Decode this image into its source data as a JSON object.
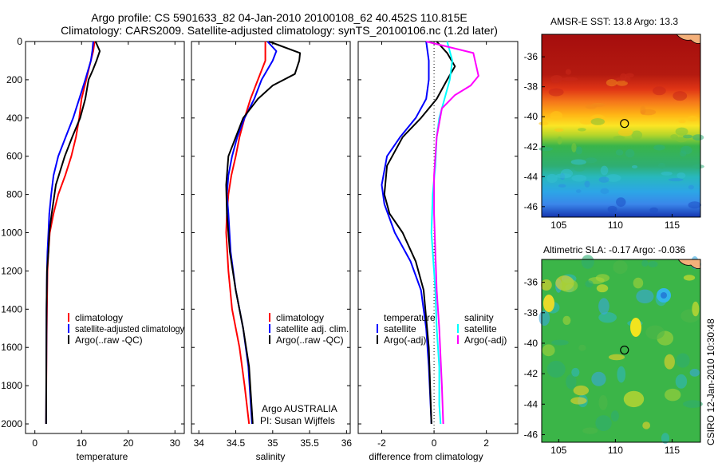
{
  "header": {
    "line1": "Argo profile: CS 5901633_82 04-Jan-2010 20100108_62 40.452S 110.815E",
    "line2": "Climatology: CARS2009. Satellite-adjusted climatology: synTS_20100106.nc (1.2d later)"
  },
  "side": {
    "sst_caption": "AMSR-E SST: 13.8 Argo: 13.3",
    "sla_caption": "Altimetric SLA: -0.17 Argo: -0.036",
    "credit": "CSIRO 12-Jan-2010 10:30:48"
  },
  "colors": {
    "climatology": "#ff0000",
    "satellite": "#0000ff",
    "argo": "#000000",
    "sal_satellite": "#00ffff",
    "sal_argo": "#ff00ff",
    "land": "#f4b07a"
  },
  "chart_data": [
    {
      "type": "line",
      "xlabel": "temperature",
      "xlim": [
        -2,
        32
      ],
      "xticks": [
        "0",
        "10",
        "20",
        "30"
      ],
      "ylim": [
        0,
        2050
      ],
      "yticks": [
        "0",
        "200",
        "400",
        "600",
        "800",
        "1000",
        "1200",
        "1400",
        "1600",
        "1800",
        "2000"
      ],
      "legend": [
        "climatology",
        "satellite-adjusted climatology",
        "Argo(..raw -QC)"
      ],
      "series": [
        {
          "name": "climatology",
          "color": "climatology",
          "x": [
            12.8,
            12.5,
            12.0,
            11.0,
            10.0,
            9.5,
            8.8,
            7.8,
            6.5,
            5.0,
            4.0,
            3.2,
            2.9,
            2.7,
            2.6,
            2.5,
            2.4
          ],
          "y": [
            0,
            50,
            100,
            200,
            300,
            400,
            500,
            600,
            700,
            800,
            900,
            1000,
            1100,
            1200,
            1400,
            1600,
            2000
          ]
        },
        {
          "name": "satellite-adjusted climatology",
          "color": "satellite",
          "x": [
            12.5,
            12.3,
            12.0,
            10.8,
            9.5,
            8.2,
            6.6,
            5.0,
            4.0,
            3.5,
            3.1,
            2.9,
            2.7,
            2.6,
            2.5,
            2.4
          ],
          "y": [
            0,
            50,
            100,
            200,
            300,
            400,
            500,
            600,
            700,
            800,
            900,
            1000,
            1100,
            1200,
            1400,
            2000
          ]
        },
        {
          "name": "Argo(..raw -QC)",
          "color": "argo",
          "x": [
            13.0,
            13.9,
            13.2,
            12.4,
            11.5,
            10.8,
            9.7,
            8.0,
            6.4,
            4.5,
            3.6,
            3.1,
            2.9,
            2.6,
            2.5,
            2.4
          ],
          "y": [
            0,
            50,
            100,
            150,
            200,
            300,
            400,
            500,
            600,
            750,
            900,
            1000,
            1100,
            1200,
            1400,
            2000
          ]
        }
      ]
    },
    {
      "type": "line",
      "xlabel": "salinity",
      "xlim": [
        33.9,
        36.05
      ],
      "xticks": [
        "34",
        "34.5",
        "35",
        "35.5",
        "36"
      ],
      "ylim": [
        0,
        2050
      ],
      "yticks": [],
      "legend": [
        "climatology",
        "satellite adj. clim.",
        "Argo(..raw -QC)"
      ],
      "annotations": [
        "Argo AUSTRALIA",
        "PI: Susan Wijffels"
      ],
      "series": [
        {
          "name": "climatology",
          "color": "climatology",
          "x": [
            34.9,
            34.9,
            34.8,
            34.7,
            34.62,
            34.55,
            34.5,
            34.44,
            34.4,
            34.38,
            34.37,
            34.4,
            34.45,
            34.55,
            34.62,
            34.68
          ],
          "y": [
            0,
            100,
            200,
            300,
            400,
            500,
            600,
            700,
            800,
            900,
            1000,
            1200,
            1400,
            1600,
            1800,
            2000
          ]
        },
        {
          "name": "satellite adj. clim.",
          "color": "satellite",
          "x": [
            34.93,
            35.05,
            35.0,
            34.85,
            34.75,
            34.62,
            34.52,
            34.45,
            34.4,
            34.38,
            34.4,
            34.43,
            34.5,
            34.6,
            34.67,
            34.72
          ],
          "y": [
            0,
            50,
            100,
            200,
            300,
            400,
            500,
            600,
            700,
            800,
            900,
            1100,
            1300,
            1500,
            1700,
            2000
          ]
        },
        {
          "name": "Argo(..raw -QC)",
          "color": "argo",
          "x": [
            34.95,
            35.37,
            35.36,
            35.3,
            35.0,
            34.8,
            34.6,
            34.5,
            34.4,
            34.37,
            34.38,
            34.42,
            34.5,
            34.6,
            34.68,
            34.73
          ],
          "y": [
            0,
            60,
            100,
            170,
            230,
            300,
            400,
            500,
            600,
            750,
            900,
            1100,
            1300,
            1500,
            1700,
            2000
          ]
        }
      ]
    },
    {
      "type": "line",
      "xlabel": "difference from climatology",
      "xlim": [
        -2.9,
        3.2
      ],
      "xticks": [
        "-2",
        "0",
        "2"
      ],
      "ylim": [
        0,
        2050
      ],
      "yticks": [],
      "zero_line": "dotted",
      "legend_titles": [
        "temperature",
        "salinity"
      ],
      "legend": [
        "satellite",
        "Argo(-adj)",
        "satellite",
        "Argo(-adj)"
      ],
      "series": [
        {
          "name": "satellite",
          "color": "satellite",
          "x": [
            -0.3,
            -0.2,
            -0.2,
            -0.3,
            -0.7,
            -1.3,
            -1.8,
            -2.0,
            -1.9,
            -1.5,
            -0.9,
            -0.5,
            -0.3,
            -0.2,
            -0.1
          ],
          "y": [
            0,
            100,
            200,
            300,
            400,
            500,
            600,
            750,
            850,
            1000,
            1150,
            1300,
            1500,
            1700,
            2000
          ]
        },
        {
          "name": "Argo(-adj)",
          "color": "argo",
          "x": [
            0.1,
            0.5,
            0.8,
            0.5,
            0.1,
            -0.5,
            -1.2,
            -1.8,
            -1.9,
            -1.7,
            -1.2,
            -0.7,
            -0.4,
            -0.2,
            -0.1
          ],
          "y": [
            0,
            60,
            130,
            200,
            300,
            400,
            500,
            650,
            800,
            900,
            1000,
            1150,
            1300,
            1600,
            2000
          ]
        },
        {
          "name": "satellite",
          "color": "sal_satellite",
          "x": [
            0.5,
            0.7,
            0.6,
            0.4,
            0.2,
            0.1,
            0.05,
            -0.05,
            -0.1,
            -0.05,
            0.05,
            0.1,
            0.2,
            0.2,
            0.25
          ],
          "y": [
            0,
            100,
            200,
            300,
            400,
            500,
            650,
            800,
            1000,
            1100,
            1300,
            1500,
            1700,
            1900,
            2000
          ]
        },
        {
          "name": "Argo(-adj)",
          "color": "sal_argo",
          "x": [
            -0.3,
            1.5,
            1.7,
            1.4,
            0.8,
            0.3,
            0.1,
            0.0,
            0.0,
            0.05,
            0.1,
            0.2,
            0.3,
            0.35
          ],
          "y": [
            0,
            60,
            180,
            230,
            280,
            350,
            500,
            700,
            900,
            1100,
            1300,
            1500,
            1800,
            2000
          ]
        }
      ]
    },
    {
      "type": "heatmap",
      "title": "AMSR-E SST: 13.8 Argo: 13.3",
      "xlim": [
        103.5,
        117.5
      ],
      "ylim": [
        -46.7,
        -34.5
      ],
      "xticks": [
        "105",
        "110",
        "115"
      ],
      "yticks": [
        "-36",
        "-38",
        "-40",
        "-42",
        "-44",
        "-46"
      ],
      "argo_position": [
        110.8,
        -40.45
      ]
    },
    {
      "type": "heatmap",
      "title": "Altimetric SLA: -0.17 Argo: -0.036",
      "xlim": [
        103.5,
        117.5
      ],
      "ylim": [
        -46.5,
        -34.5
      ],
      "xticks": [
        "105",
        "110",
        "115"
      ],
      "yticks": [
        "-36",
        "-38",
        "-40",
        "-42",
        "-44",
        "-46"
      ],
      "argo_position": [
        110.8,
        -40.45
      ]
    }
  ]
}
